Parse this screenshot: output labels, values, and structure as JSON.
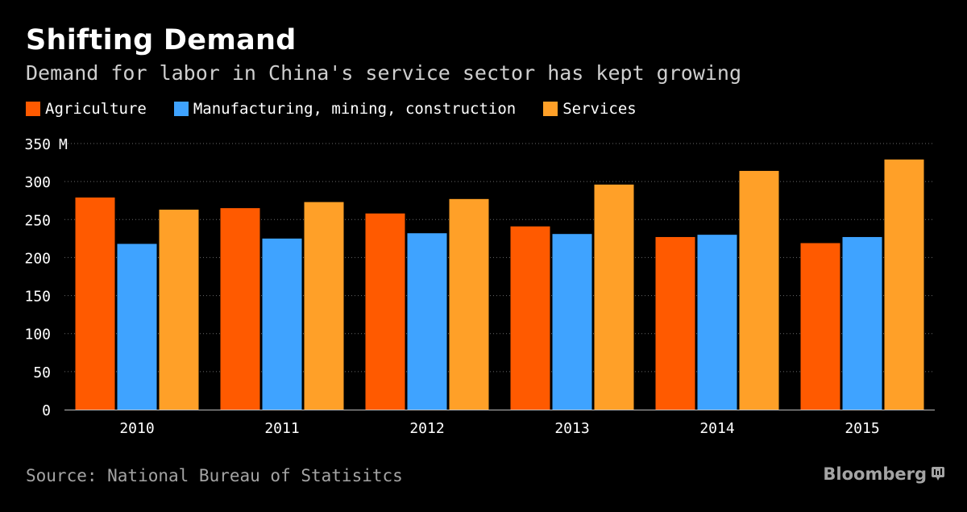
{
  "header": {
    "title": "Shifting Demand",
    "subtitle": "Demand for labor in China's service sector has kept growing"
  },
  "footer": {
    "source": "Source: National Bureau of Statisitcs",
    "brand": "Bloomberg",
    "brand_icon": "bloomberg-terminal-icon"
  },
  "colors": {
    "background": "#000000",
    "agriculture": "#ff5a00",
    "manufacturing": "#3fa3ff",
    "services": "#ffa028",
    "gridline": "#6a6a6a",
    "axis_text": "#ffffff"
  },
  "chart_data": {
    "type": "bar",
    "title": "Shifting Demand",
    "subtitle": "Demand for labor in China's service sector has kept growing",
    "categories": [
      "2010",
      "2011",
      "2012",
      "2013",
      "2014",
      "2015"
    ],
    "series": [
      {
        "name": "Agriculture",
        "color": "#ff5a00",
        "values": [
          279,
          265,
          258,
          241,
          227,
          219
        ]
      },
      {
        "name": "Manufacturing, mining, construction",
        "color": "#3fa3ff",
        "values": [
          218,
          225,
          232,
          231,
          230,
          227
        ]
      },
      {
        "name": "Services",
        "color": "#ffa028",
        "values": [
          263,
          273,
          277,
          296,
          314,
          329
        ]
      }
    ],
    "yticks": [
      0,
      50,
      100,
      150,
      200,
      250,
      300,
      350
    ],
    "ylim": [
      0,
      350
    ],
    "yunit": "M",
    "xlabel": "",
    "ylabel": "",
    "grid": true,
    "legend_position": "top-left"
  }
}
